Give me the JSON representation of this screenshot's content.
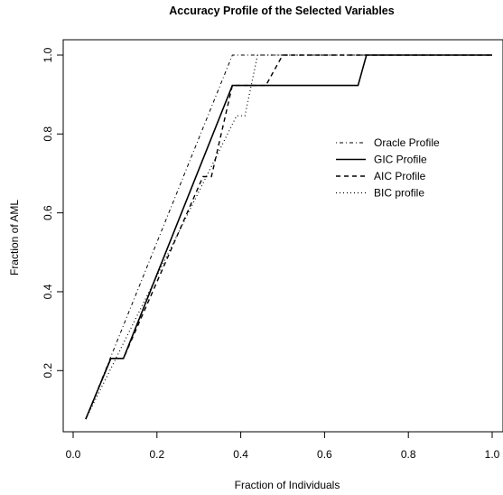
{
  "chart_data": {
    "type": "line",
    "title": "Accuracy Profile of the Selected Variables",
    "xlabel": "Fraction of Individuals",
    "ylabel": "Fraction of AML",
    "xlim": [
      0.0,
      1.0
    ],
    "ylim": [
      0.077,
      1.0
    ],
    "x_ticks": [
      "0.0",
      "0.2",
      "0.4",
      "0.6",
      "0.8",
      "1.0"
    ],
    "y_ticks": [
      "0.2",
      "0.4",
      "0.6",
      "0.8",
      "1.0"
    ],
    "grid": false,
    "legend_position": "right",
    "series": [
      {
        "name": "Oracle Profile",
        "dash": "dotdash",
        "points": [
          [
            0.03,
            0.077
          ],
          [
            0.38,
            1.0
          ],
          [
            1.0,
            1.0
          ]
        ]
      },
      {
        "name": "GIC Profile",
        "dash": "solid",
        "points": [
          [
            0.03,
            0.077
          ],
          [
            0.09,
            0.231
          ],
          [
            0.12,
            0.231
          ],
          [
            0.38,
            0.923
          ],
          [
            0.68,
            0.923
          ],
          [
            0.7,
            1.0
          ],
          [
            1.0,
            1.0
          ]
        ]
      },
      {
        "name": "AIC Profile",
        "dash": "dashed",
        "points": [
          [
            0.03,
            0.077
          ],
          [
            0.09,
            0.231
          ],
          [
            0.12,
            0.231
          ],
          [
            0.31,
            0.692
          ],
          [
            0.33,
            0.692
          ],
          [
            0.38,
            0.923
          ],
          [
            0.46,
            0.923
          ],
          [
            0.5,
            1.0
          ],
          [
            1.0,
            1.0
          ]
        ]
      },
      {
        "name": "BIC profile",
        "dash": "dotted",
        "points": [
          [
            0.03,
            0.077
          ],
          [
            0.39,
            0.846
          ],
          [
            0.41,
            0.846
          ],
          [
            0.44,
            1.0
          ],
          [
            1.0,
            1.0
          ]
        ]
      }
    ]
  }
}
